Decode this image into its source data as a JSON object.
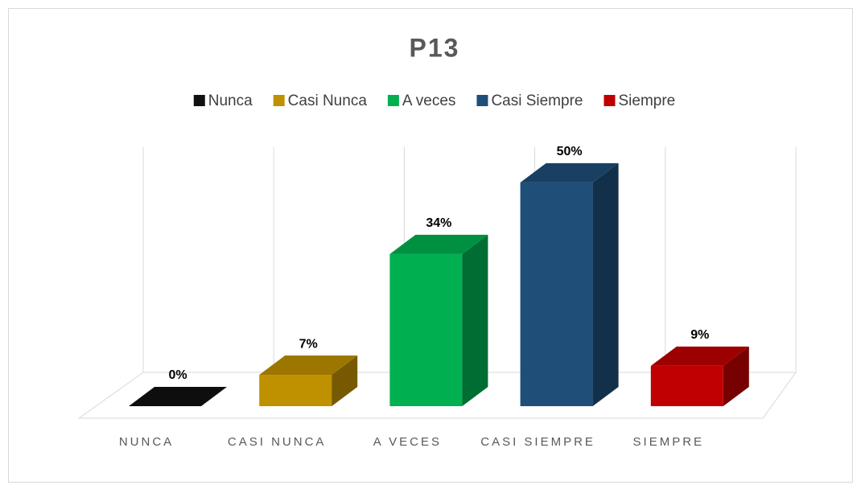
{
  "chart_data": {
    "type": "bar3d",
    "title": "P13",
    "legend": [
      "Nunca",
      "Casi Nunca",
      "A veces",
      "Casi Siempre",
      "Siempre"
    ],
    "categories": [
      "NUNCA",
      "CASI NUNCA",
      "A VECES",
      "CASI SIEMPRE",
      "SIEMPRE"
    ],
    "values": [
      0,
      7,
      34,
      50,
      9
    ],
    "value_labels": [
      "0%",
      "7%",
      "34%",
      "50%",
      "9%"
    ],
    "colors": [
      "#111111",
      "#bf9000",
      "#00b050",
      "#1f4e79",
      "#c00000"
    ],
    "ylim": [
      0,
      55
    ],
    "grid": true
  }
}
